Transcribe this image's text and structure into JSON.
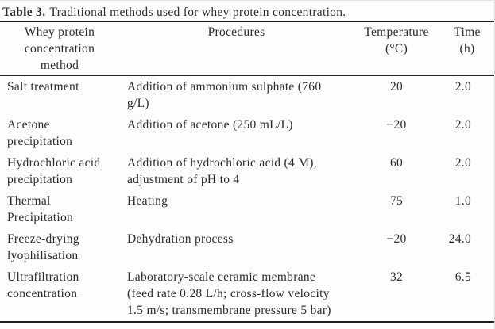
{
  "title": {
    "label": "Table 3.",
    "text": "Traditional methods used for whey protein concentration."
  },
  "table": {
    "columns": [
      {
        "key": "method",
        "label": "Whey protein\nconcentration\nmethod"
      },
      {
        "key": "procedures",
        "label": "Procedures"
      },
      {
        "key": "temperature",
        "label": "Temperature\n(°C)"
      },
      {
        "key": "time",
        "label": "Time\n(h)"
      }
    ],
    "rows": [
      {
        "method": "Salt treatment",
        "procedures": "Addition of ammonium sulphate (760\ng/L)",
        "temperature": "20",
        "time": "2.0"
      },
      {
        "method": "Acetone\nprecipitation",
        "procedures": "Addition of acetone (250 mL/L)",
        "temperature": "−20",
        "time": "2.0"
      },
      {
        "method": "Hydrochloric acid\nprecipitation",
        "procedures": "Addition of hydrochloric acid (4 M),\nadjustment of pH to 4",
        "temperature": "60",
        "time": "2.0"
      },
      {
        "method": "Thermal\nPrecipitation",
        "procedures": "Heating",
        "temperature": "75",
        "time": "1.0"
      },
      {
        "method": "Freeze-drying\nlyophilisation",
        "procedures": "Dehydration process",
        "temperature": "−20",
        "time": "24.0"
      },
      {
        "method": "Ultrafiltration\nconcentration",
        "procedures": "Laboratory-scale ceramic membrane\n(feed rate 0.28 L/h; cross-flow velocity\n1.5 m/s; transmembrane pressure 5 bar)",
        "temperature": "32",
        "time": "6.5"
      }
    ]
  },
  "colors": {
    "text": "#2b2b2b",
    "rule": "#1e1e1e",
    "background": "#fdfdfd"
  }
}
